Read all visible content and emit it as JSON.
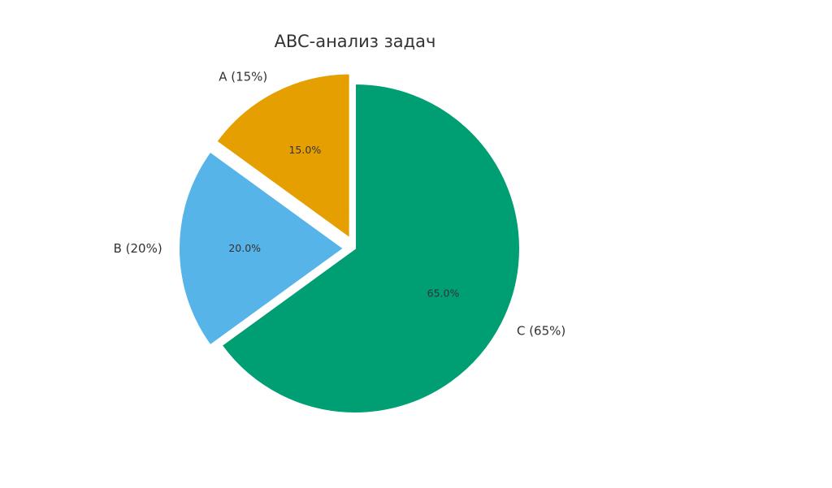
{
  "chart_data": {
    "type": "pie",
    "title": "ABC-анализ задач",
    "start_angle_deg": 90,
    "direction": "counterclockwise",
    "slices": [
      {
        "name": "A (15%)",
        "value": 15,
        "pct_label": "15.0%",
        "color": "#E69F00",
        "exploded": true
      },
      {
        "name": "B (20%)",
        "value": 20,
        "pct_label": "20.0%",
        "color": "#56B4E9",
        "exploded": true
      },
      {
        "name": "C (65%)",
        "value": 65,
        "pct_label": "65.0%",
        "color": "#009E73",
        "exploded": false
      }
    ]
  }
}
